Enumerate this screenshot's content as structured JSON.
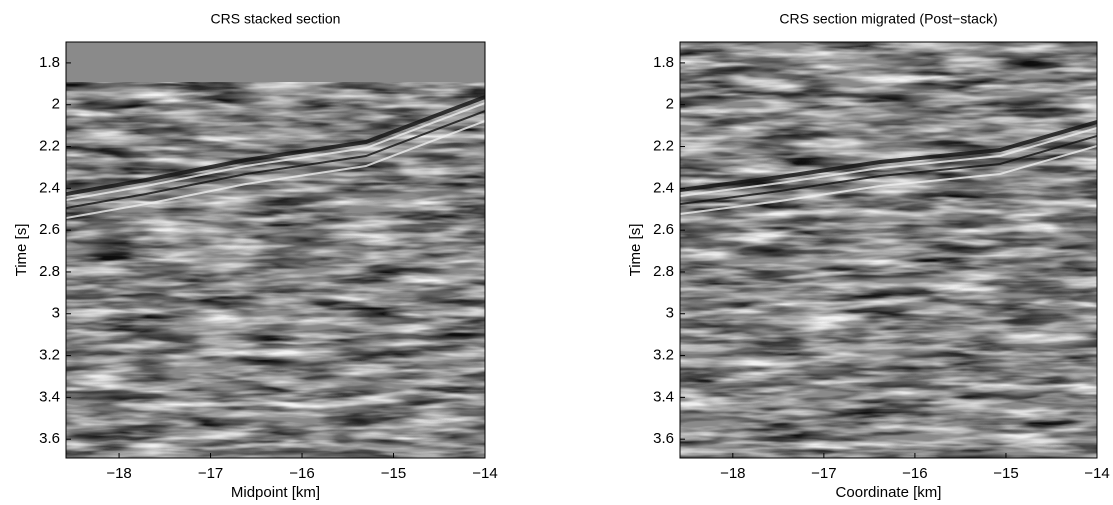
{
  "chart_data": [
    {
      "type": "image",
      "title": "CRS stacked section",
      "x_label": "Midpoint [km]",
      "y_label": "Time [s]",
      "xlim": [
        -18.58,
        -14
      ],
      "ylim": [
        1.7,
        3.69
      ],
      "y_reversed": true,
      "xticks": [
        {
          "value": -18,
          "label": "−18"
        },
        {
          "value": -17,
          "label": "−17"
        },
        {
          "value": -16,
          "label": "−16"
        },
        {
          "value": -15,
          "label": "−15"
        },
        {
          "value": -14,
          "label": "−14"
        }
      ],
      "yticks": [
        1.8,
        2,
        2.2,
        2.4,
        2.6,
        2.8,
        3,
        3.2,
        3.4,
        3.6
      ]
    },
    {
      "type": "image",
      "title": "CRS section migrated (Post−stack)",
      "x_label": "Coordinate [km]",
      "y_label": "Time [s]",
      "xlim": [
        -18.58,
        -14
      ],
      "ylim": [
        1.7,
        3.69
      ],
      "y_reversed": true,
      "xticks": [
        {
          "value": -18,
          "label": "−18"
        },
        {
          "value": -17,
          "label": "−17"
        },
        {
          "value": -16,
          "label": "−16"
        },
        {
          "value": -15,
          "label": "−15"
        },
        {
          "value": -14,
          "label": "−14"
        }
      ],
      "yticks": [
        1.8,
        2,
        2.2,
        2.4,
        2.6,
        2.8,
        3,
        3.2,
        3.4,
        3.6
      ]
    }
  ]
}
